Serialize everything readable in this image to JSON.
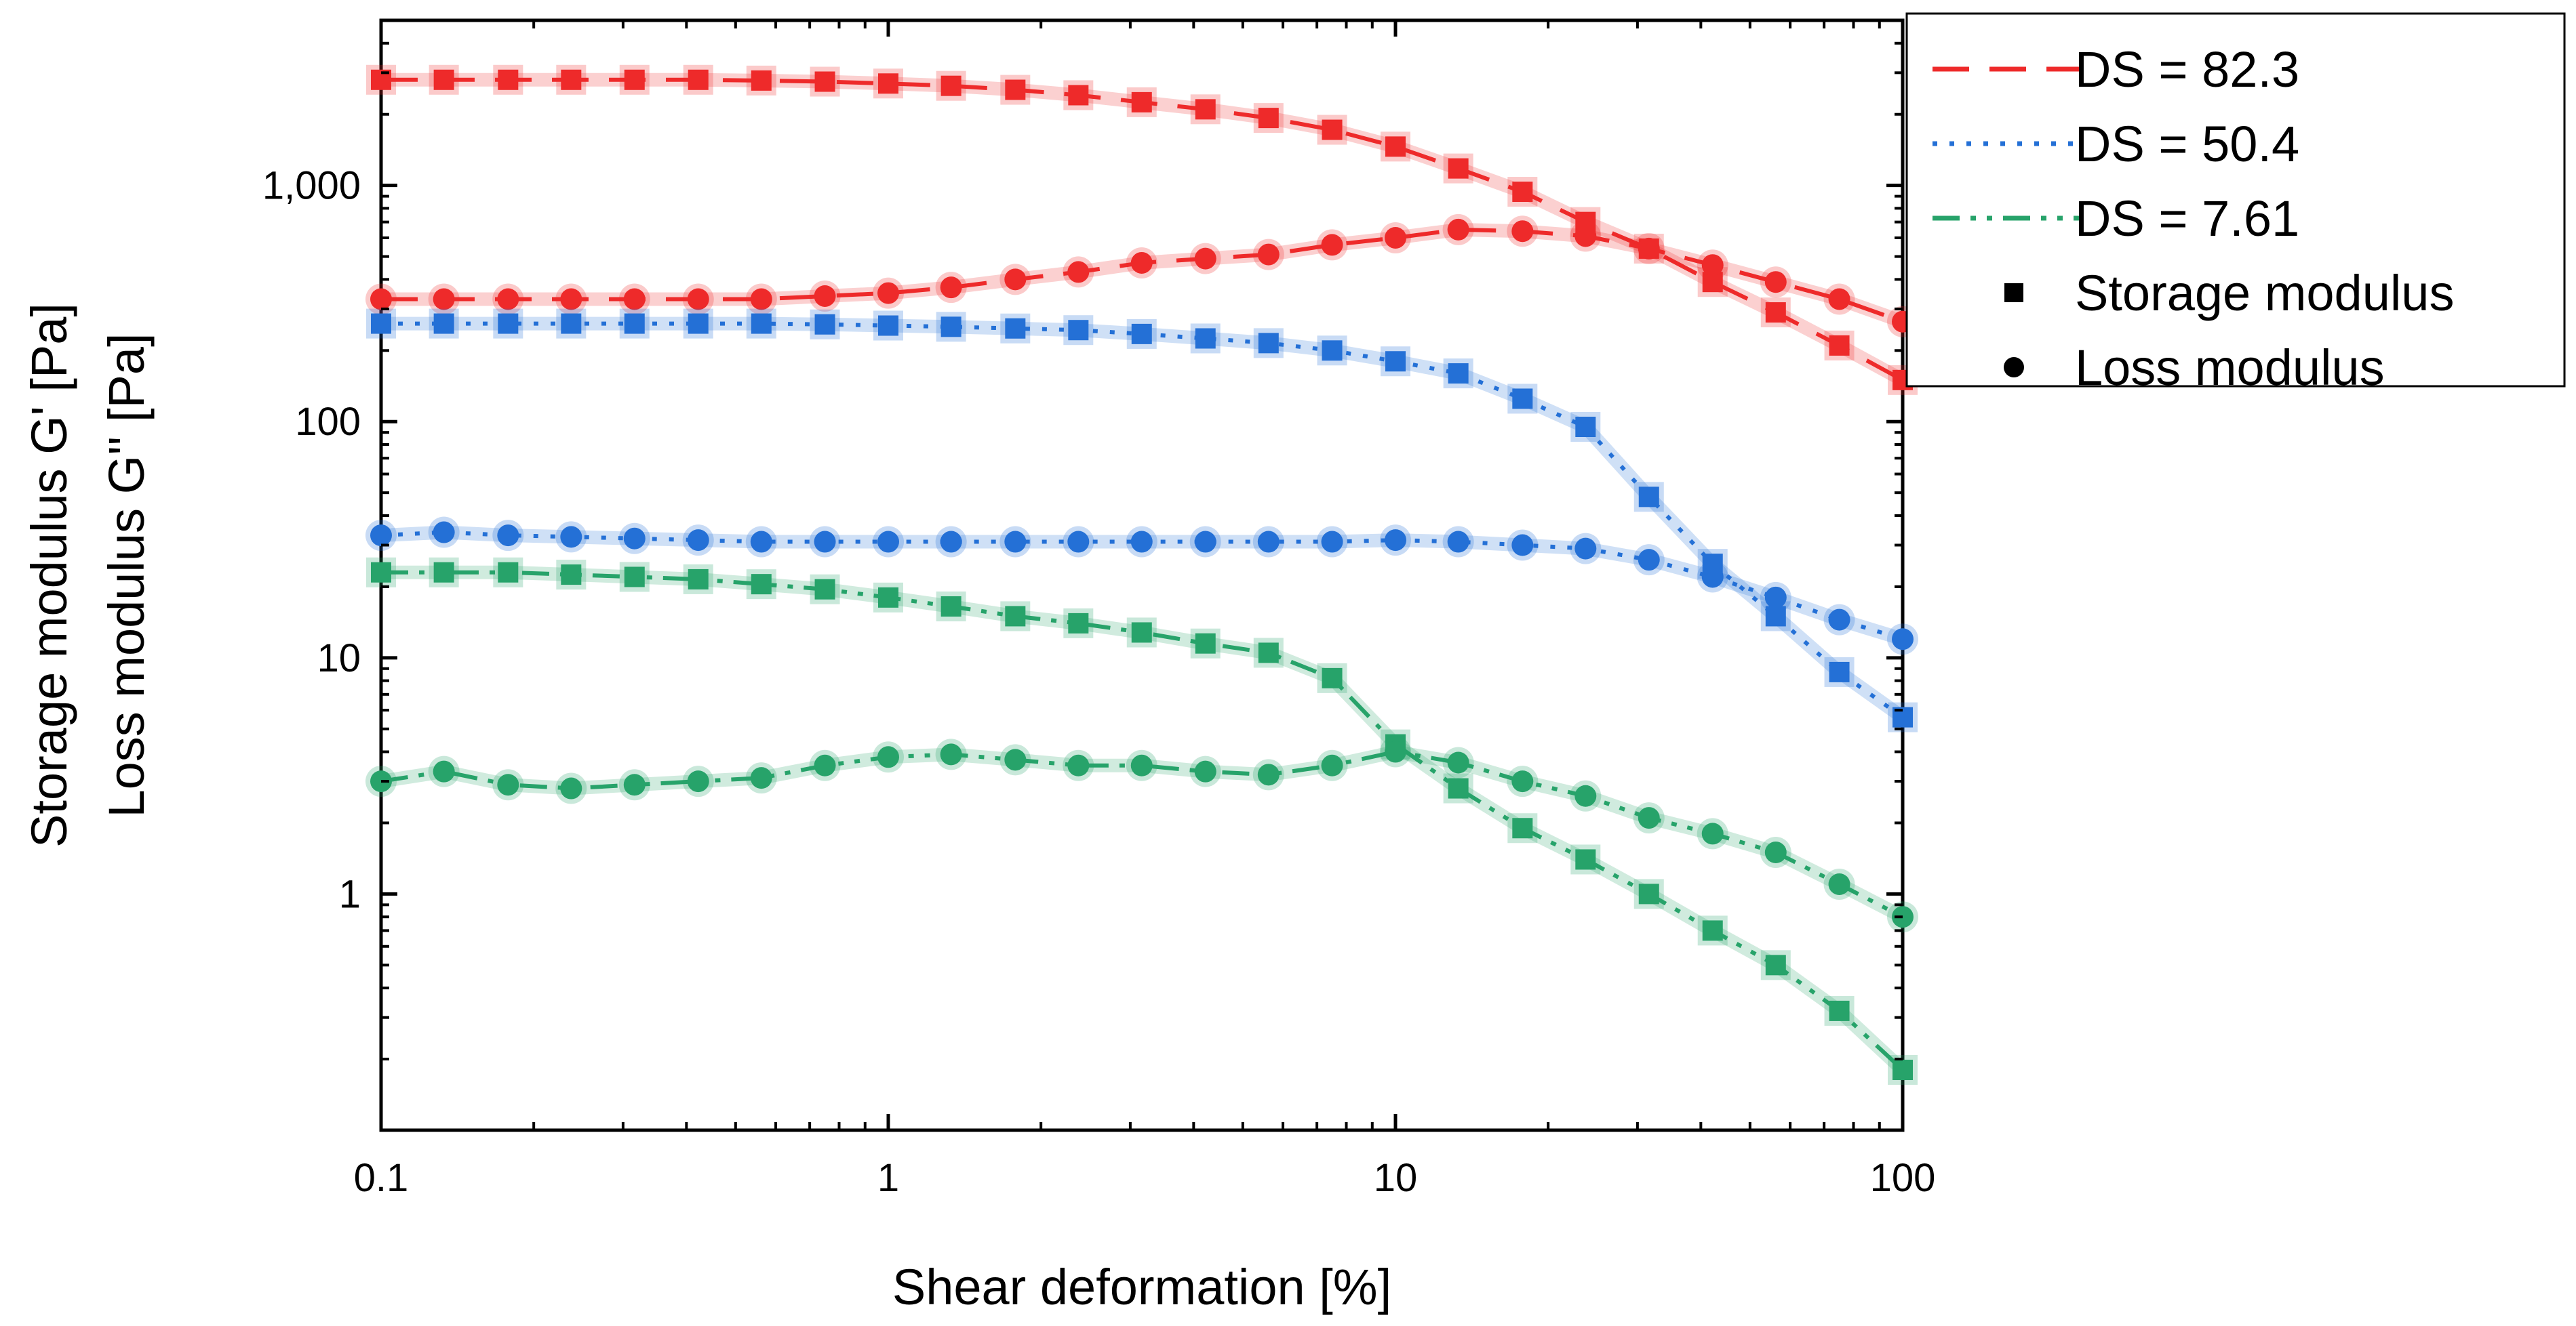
{
  "chart_data": {
    "type": "line",
    "xscale": "log",
    "yscale": "log",
    "xlabel": "Shear deformation [%]",
    "ylabel_lines": [
      "Storage modulus G' [Pa]",
      "Loss modulus G'' [Pa]"
    ],
    "xlim": [
      0.1,
      100
    ],
    "ylim": [
      0.1,
      5000
    ],
    "xticks": [
      {
        "value": 0.1,
        "label": "0.1"
      },
      {
        "value": 1,
        "label": "1"
      },
      {
        "value": 10,
        "label": "10"
      },
      {
        "value": 100,
        "label": "100"
      }
    ],
    "yticks": [
      {
        "value": 1,
        "label": "1"
      },
      {
        "value": 10,
        "label": "10"
      },
      {
        "value": 100,
        "label": "100"
      },
      {
        "value": 1000,
        "label": "1,000"
      }
    ],
    "x": [
      0.1,
      0.133,
      0.178,
      0.237,
      0.316,
      0.422,
      0.562,
      0.75,
      1.0,
      1.33,
      1.78,
      2.37,
      3.16,
      4.22,
      5.62,
      7.5,
      10.0,
      13.3,
      17.8,
      23.7,
      31.6,
      42.2,
      56.2,
      75.0,
      100.0
    ],
    "series": [
      {
        "name": "DS = 82.3 storage",
        "group": "DS = 82.3",
        "modulus": "storage",
        "color": "#ee2a2a",
        "dash": "54,30",
        "marker": "square",
        "values": [
          2800,
          2800,
          2800,
          2800,
          2800,
          2800,
          2780,
          2750,
          2700,
          2640,
          2540,
          2410,
          2250,
          2100,
          1930,
          1720,
          1460,
          1180,
          940,
          700,
          540,
          390,
          290,
          210,
          150
        ]
      },
      {
        "name": "DS = 82.3 loss",
        "group": "DS = 82.3",
        "modulus": "loss",
        "color": "#ee2a2a",
        "dash": "54,30",
        "marker": "circle",
        "values": [
          330,
          330,
          330,
          330,
          330,
          330,
          330,
          340,
          350,
          370,
          400,
          430,
          470,
          490,
          510,
          560,
          600,
          650,
          640,
          610,
          540,
          460,
          390,
          330,
          265
        ]
      },
      {
        "name": "DS = 50.4 storage",
        "group": "DS = 50.4",
        "modulus": "storage",
        "color": "#2470d6",
        "dash": "7,18",
        "marker": "square",
        "values": [
          260,
          260,
          260,
          260,
          260,
          260,
          260,
          258,
          255,
          252,
          248,
          244,
          235,
          225,
          215,
          200,
          180,
          160,
          125,
          95,
          48,
          25,
          15,
          8.7,
          5.6
        ]
      },
      {
        "name": "DS = 50.4 loss",
        "group": "DS = 50.4",
        "modulus": "loss",
        "color": "#2470d6",
        "dash": "7,18",
        "marker": "circle",
        "values": [
          33,
          34,
          33,
          32.5,
          32,
          31.5,
          31,
          31,
          31,
          31,
          31,
          31,
          31,
          31,
          31,
          31,
          31.5,
          31,
          30,
          29,
          26,
          22,
          18,
          14.5,
          12
        ]
      },
      {
        "name": "DS = 7.61 storage",
        "group": "DS = 7.61",
        "modulus": "storage",
        "color": "#27a36a",
        "dash": "40,16,8,16,8,16",
        "marker": "square",
        "values": [
          23,
          23,
          23,
          22.5,
          22,
          21.5,
          20.5,
          19.5,
          18,
          16.5,
          15,
          14,
          12.8,
          11.5,
          10.5,
          8.2,
          4.3,
          2.8,
          1.9,
          1.4,
          1.0,
          0.7,
          0.5,
          0.32,
          0.18
        ]
      },
      {
        "name": "DS = 7.61 loss",
        "group": "DS = 7.61",
        "modulus": "loss",
        "color": "#27a36a",
        "dash": "40,16,8,16,8,16",
        "marker": "circle",
        "values": [
          3.0,
          3.3,
          2.9,
          2.8,
          2.9,
          3.0,
          3.1,
          3.5,
          3.8,
          3.9,
          3.7,
          3.5,
          3.5,
          3.3,
          3.2,
          3.5,
          4.0,
          3.6,
          3.0,
          2.6,
          2.1,
          1.8,
          1.5,
          1.1,
          0.8
        ]
      }
    ],
    "legend": {
      "position": "top-right",
      "entries": [
        {
          "label": "DS = 82.3",
          "kind": "line",
          "color": "#ee2a2a",
          "dash": "54,30"
        },
        {
          "label": "DS = 50.4",
          "kind": "line",
          "color": "#2470d6",
          "dash": "7,18"
        },
        {
          "label": "DS = 7.61",
          "kind": "line",
          "color": "#27a36a",
          "dash": "40,16,8,16,8,16"
        },
        {
          "label": "Storage modulus",
          "kind": "marker",
          "marker": "square",
          "color": "#000000"
        },
        {
          "label": "Loss modulus",
          "kind": "marker",
          "marker": "circle",
          "color": "#000000"
        }
      ]
    }
  }
}
